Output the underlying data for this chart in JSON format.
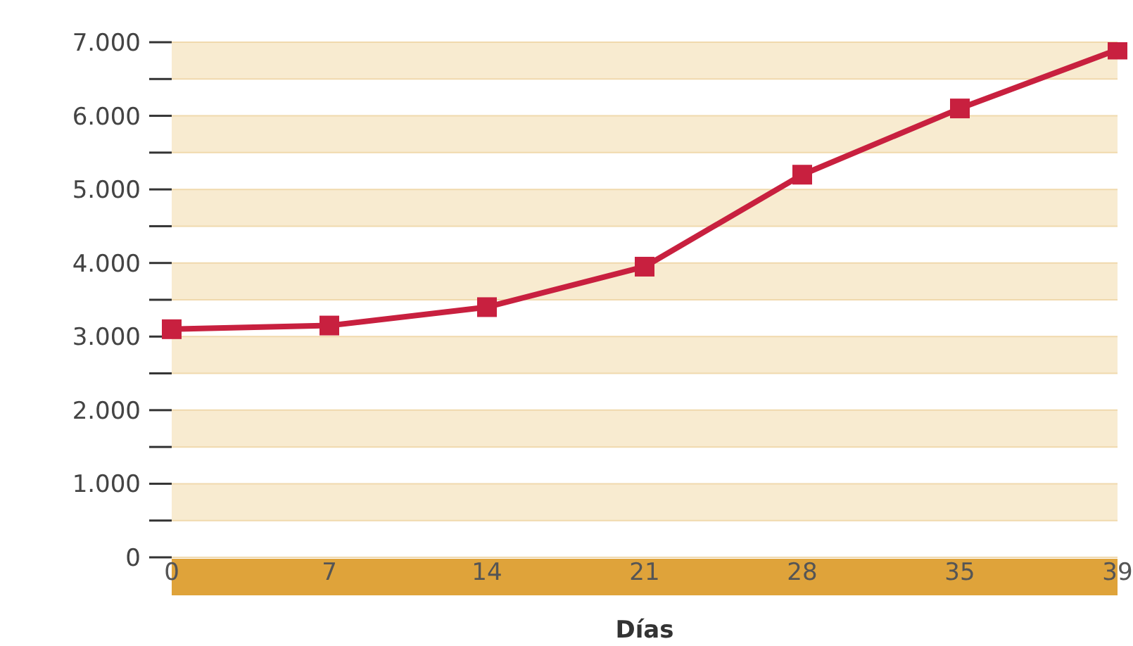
{
  "chart_data": {
    "type": "line",
    "xlabel": "Días",
    "categories": [
      "0",
      "7",
      "14",
      "21",
      "28",
      "35",
      "39"
    ],
    "series": [
      {
        "color": "#c8203f",
        "values": [
          3100,
          3150,
          3400,
          3950,
          5200,
          6100,
          6900
        ]
      }
    ],
    "ylim": [
      0,
      7000
    ],
    "yticks": [
      {
        "value": 0,
        "label": "0"
      },
      {
        "value": 500,
        "label": null
      },
      {
        "value": 1000,
        "label": "1.000"
      },
      {
        "value": 1500,
        "label": null
      },
      {
        "value": 2000,
        "label": "2.000"
      },
      {
        "value": 2500,
        "label": null
      },
      {
        "value": 3000,
        "label": "3.000"
      },
      {
        "value": 3500,
        "label": null
      },
      {
        "value": 4000,
        "label": "4.000"
      },
      {
        "value": 4500,
        "label": null
      },
      {
        "value": 5000,
        "label": "5.000"
      },
      {
        "value": 5500,
        "label": null
      },
      {
        "value": 6000,
        "label": "6.000"
      },
      {
        "value": 6500,
        "label": null
      },
      {
        "value": 7000,
        "label": "7.000"
      }
    ],
    "grid": "y",
    "marker": "square",
    "line_style": "solid",
    "legend": false
  }
}
